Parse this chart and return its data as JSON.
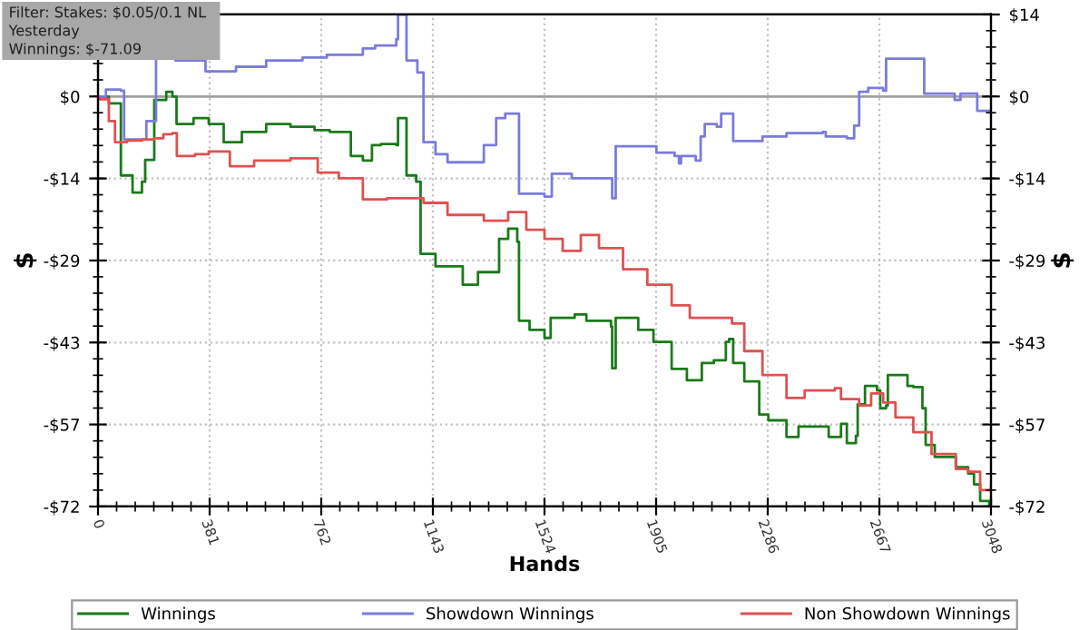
{
  "chart_data": {
    "type": "step",
    "xlabel": "Hands",
    "ylabel": "$",
    "y2label": "$",
    "annotations": [
      "Filter: Stakes: $0.05/0.1 NL",
      "Yesterday",
      "Winnings: $-71.09"
    ],
    "xlim": [
      0,
      3048
    ],
    "xticks": [
      0,
      381,
      762,
      1143,
      1524,
      1905,
      2286,
      2667,
      3048
    ],
    "ylim": [
      -71.67,
      14.33
    ],
    "yticks": [
      {
        "value": 14.33,
        "label": null
      },
      {
        "value": 0,
        "label": "$0"
      },
      {
        "value": -14.33,
        "label": "-$14"
      },
      {
        "value": -28.67,
        "label": "-$29"
      },
      {
        "value": -43,
        "label": "-$43"
      },
      {
        "value": -57.33,
        "label": "-$57"
      },
      {
        "value": -71.67,
        "label": "-$72"
      }
    ],
    "y2lim": [
      -71.67,
      14.33
    ],
    "y2ticks": [
      {
        "value": 14.33,
        "label": "$14"
      },
      {
        "value": 0,
        "label": "$0"
      },
      {
        "value": -14.33,
        "label": "-$14"
      },
      {
        "value": -28.67,
        "label": "-$29"
      },
      {
        "value": -43,
        "label": "-$43"
      },
      {
        "value": -57.33,
        "label": "-$57"
      },
      {
        "value": -71.67,
        "label": "-$72"
      }
    ],
    "grid": true,
    "legend": "bottom",
    "line_style": "solid",
    "ref_lines": [
      {
        "axis": "y",
        "value": 0,
        "label": null,
        "color": "#a0a0a0"
      }
    ],
    "series": [
      {
        "name": "Winnings",
        "color": "#1a7a1a",
        "x": [
          0,
          20,
          37,
          78,
          118,
          150,
          161,
          186,
          192,
          233,
          254,
          268,
          326,
          378,
          429,
          491,
          574,
          657,
          739,
          791,
          863,
          904,
          935,
          966,
          1018,
          1024,
          1039,
          1053,
          1086,
          1101,
          1152,
          1245,
          1297,
          1369,
          1400,
          1431,
          1437,
          1473,
          1524,
          1545,
          1627,
          1667,
          1751,
          1755,
          1767,
          1844,
          1896,
          1958,
          2010,
          2061,
          2102,
          2143,
          2154,
          2168,
          2206,
          2257,
          2288,
          2350,
          2391,
          2484,
          2494,
          2536,
          2556,
          2587,
          2593,
          2618,
          2659,
          2670,
          2690,
          2696,
          2763,
          2783,
          2814,
          2825,
          2856,
          2928,
          2970,
          2990,
          3011,
          3042,
          3048
        ],
        "values": [
          0,
          0,
          -1.2,
          -13.8,
          -16.8,
          -14.9,
          -11.1,
          -11.1,
          -0.6,
          0.8,
          0,
          -4.8,
          -3.8,
          -4.8,
          -8.0,
          -6.2,
          -4.8,
          -5.3,
          -5.9,
          -6.2,
          -10.4,
          -11.2,
          -8.5,
          -8.3,
          -8.5,
          -3.8,
          -3.8,
          -13.8,
          -14.9,
          -27.5,
          -29.7,
          -32.9,
          -30.7,
          -24.9,
          -23.1,
          -25.4,
          -39.2,
          -40.8,
          -42.2,
          -38.7,
          -38.1,
          -39.2,
          -40.2,
          -47.5,
          -38.7,
          -40.8,
          -42.9,
          -47.6,
          -49.6,
          -46.6,
          -46.1,
          -42.9,
          -42.4,
          -46.6,
          -49.8,
          -55.6,
          -56.6,
          -59.5,
          -57.7,
          -57.7,
          -59.5,
          -57.2,
          -60.6,
          -59.3,
          -53.8,
          -50.6,
          -51.4,
          -54.5,
          -54.0,
          -48.7,
          -50.6,
          -50.8,
          -54.5,
          -60.9,
          -63.0,
          -64.8,
          -65.9,
          -67.8,
          -70.7,
          -71.4,
          -71.1
        ]
      },
      {
        "name": "Showdown Winnings",
        "color": "#7b7bdc",
        "x": [
          0,
          27,
          78,
          89,
          161,
          165,
          192,
          198,
          264,
          367,
          471,
          574,
          698,
          781,
          904,
          946,
          1018,
          1024,
          1045,
          1053,
          1090,
          1111,
          1152,
          1193,
          1297,
          1317,
          1359,
          1390,
          1431,
          1437,
          1524,
          1549,
          1607,
          1617,
          1751,
          1755,
          1767,
          1896,
          1906,
          1968,
          1983,
          1990,
          2040,
          2057,
          2071,
          2112,
          2127,
          2154,
          2168,
          2268,
          2350,
          2474,
          2484,
          2556,
          2581,
          2598,
          2629,
          2680,
          2690,
          2814,
          2820,
          2907,
          2924,
          2944,
          2994,
          3001,
          3048
        ],
        "values": [
          0,
          1.2,
          1.0,
          -7.5,
          -7.5,
          -4.3,
          -4.3,
          6.8,
          6.3,
          4.4,
          5.2,
          6.3,
          6.8,
          7.3,
          8.4,
          8.9,
          10.0,
          14.3,
          14.3,
          6.3,
          4.2,
          -8.0,
          -10.1,
          -11.5,
          -11.5,
          -8.5,
          -3.8,
          -3.0,
          -3.0,
          -17.0,
          -17.5,
          -13.5,
          -13.5,
          -14.3,
          -14.3,
          -17.8,
          -8.7,
          -8.7,
          -9.8,
          -10.4,
          -11.7,
          -10.4,
          -11.2,
          -7.0,
          -4.8,
          -5.3,
          -3.0,
          -3.0,
          -7.8,
          -7.0,
          -6.4,
          -6.2,
          -7.0,
          -7.3,
          -5.1,
          0.8,
          1.5,
          1.0,
          6.6,
          6.6,
          0.5,
          0.5,
          -0.6,
          0.5,
          0.5,
          -2.5,
          -2.7
        ]
      },
      {
        "name": "Non Showdown Winnings",
        "color": "#e05050",
        "x": [
          0,
          37,
          58,
          99,
          151,
          192,
          223,
          254,
          269,
          331,
          378,
          450,
          533,
          657,
          750,
          822,
          904,
          987,
          1111,
          1193,
          1317,
          1400,
          1462,
          1524,
          1586,
          1648,
          1710,
          1792,
          1875,
          1958,
          2020,
          2164,
          2206,
          2268,
          2350,
          2412,
          2515,
          2536,
          2598,
          2639,
          2680,
          2722,
          2783,
          2845,
          2928,
          2970,
          3011,
          3048
        ],
        "values": [
          -0.5,
          -4.3,
          -8.0,
          -7.7,
          -7.5,
          -7.3,
          -6.6,
          -6.4,
          -10.4,
          -10.1,
          -9.6,
          -12.2,
          -11.2,
          -10.8,
          -13.3,
          -14.3,
          -18.0,
          -17.8,
          -18.6,
          -20.7,
          -21.7,
          -20.2,
          -23.3,
          -24.9,
          -27.0,
          -24.2,
          -26.5,
          -30.2,
          -32.9,
          -36.5,
          -38.7,
          -39.7,
          -44.5,
          -48.7,
          -52.7,
          -51.4,
          -51.0,
          -52.9,
          -54.0,
          -51.9,
          -53.5,
          -56.1,
          -58.7,
          -62.5,
          -65.1,
          -65.6,
          -68.8,
          -68.2
        ]
      }
    ]
  }
}
